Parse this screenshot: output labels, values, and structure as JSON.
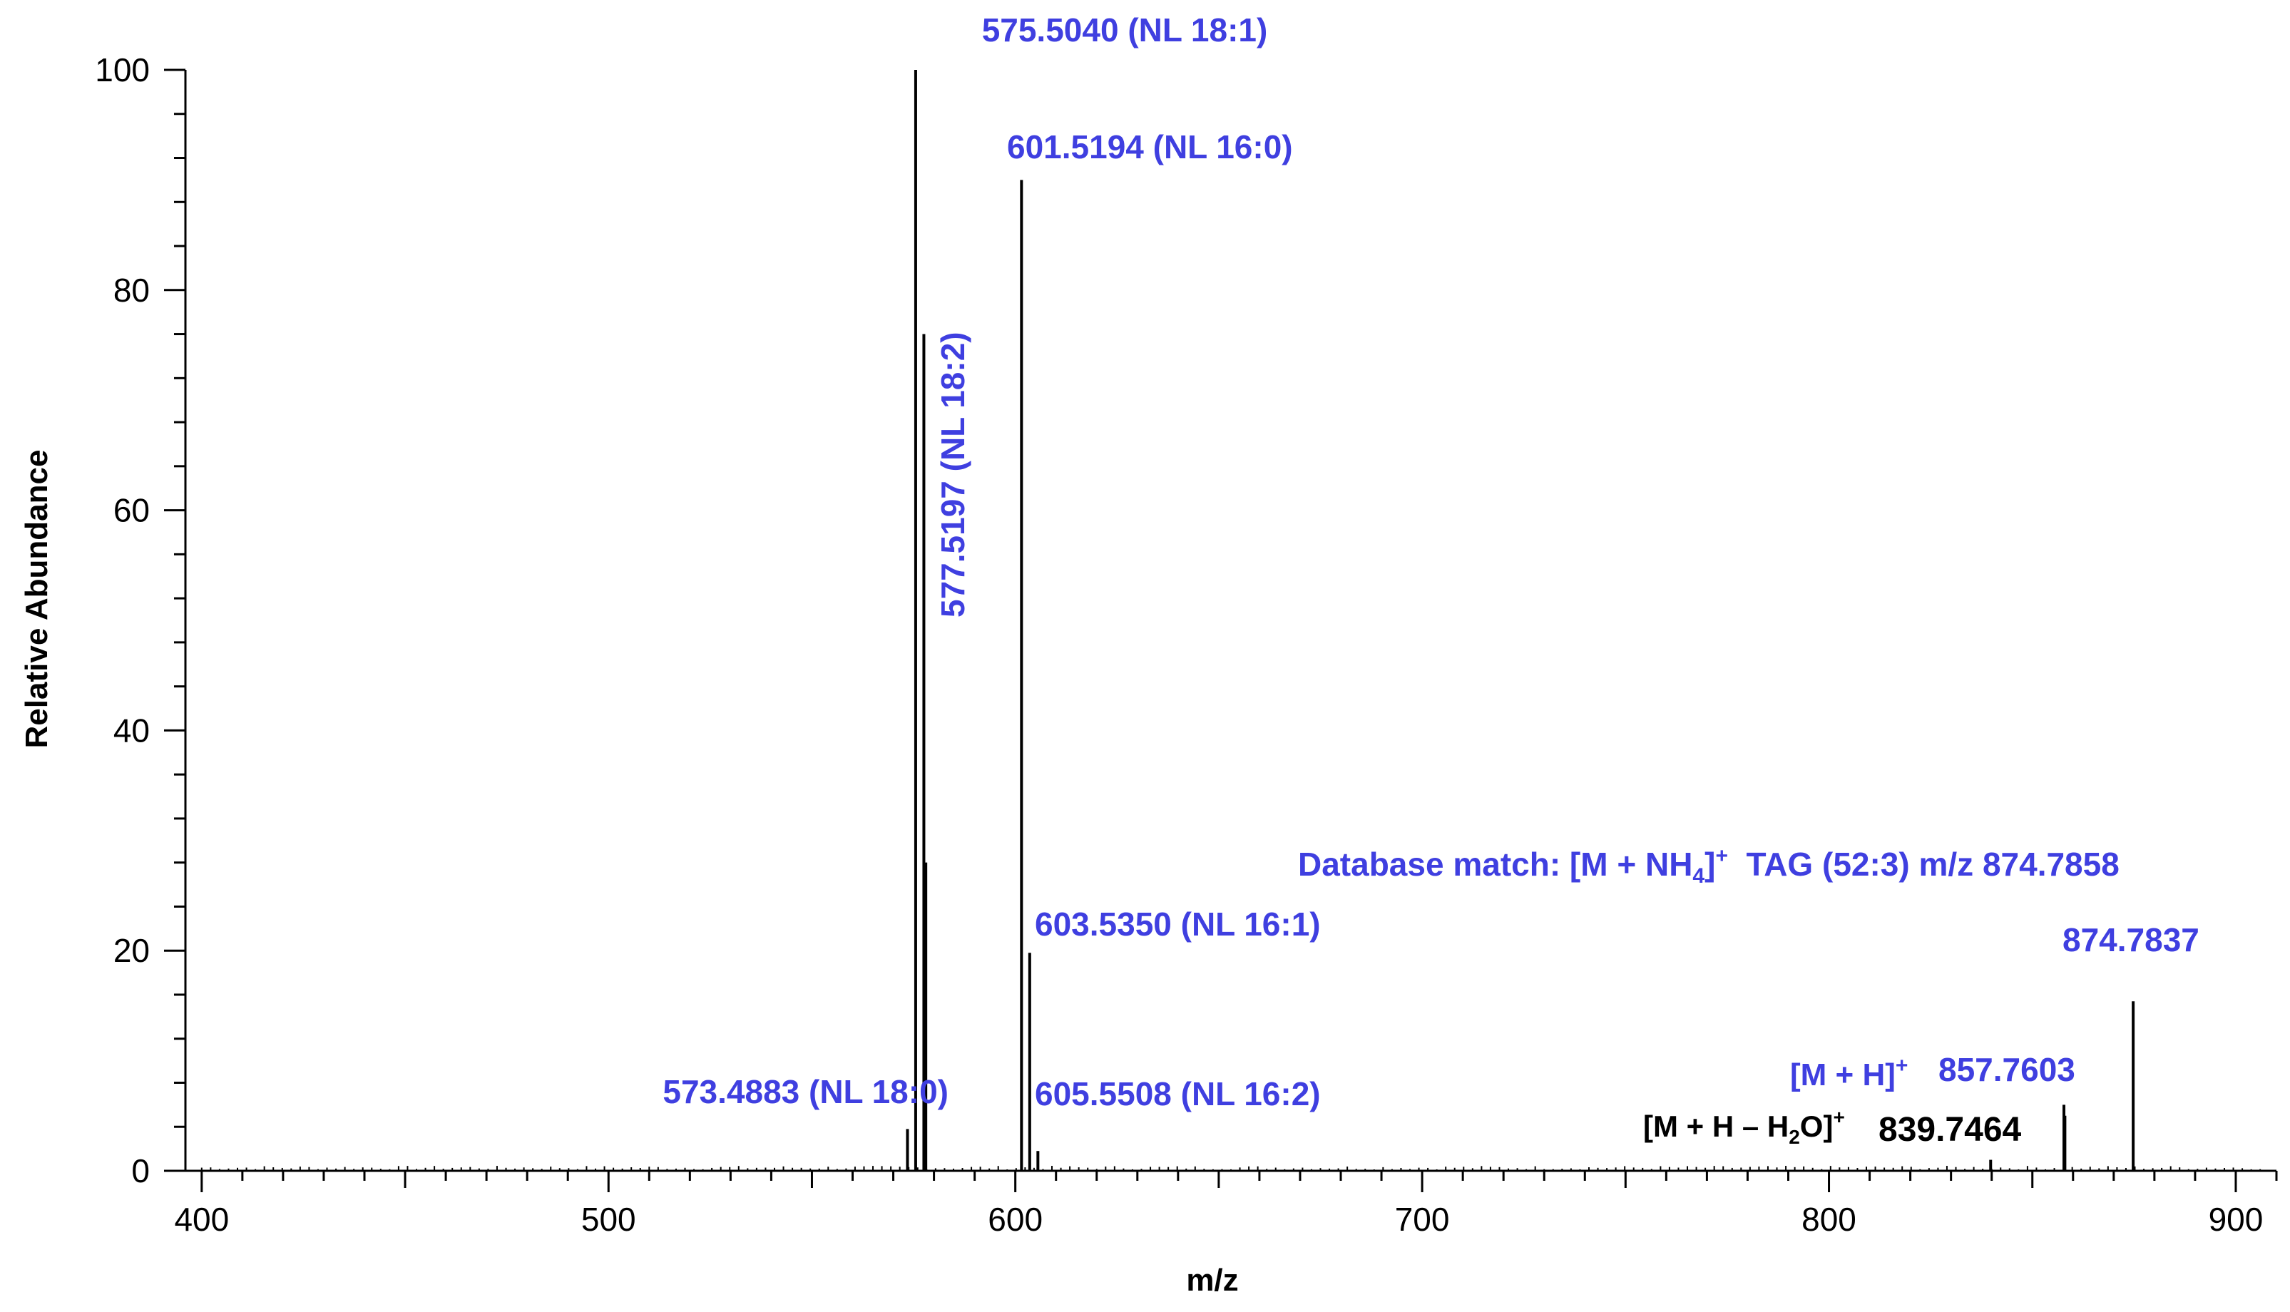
{
  "chart_data": {
    "type": "bar",
    "subtype": "mass-spectrum",
    "title": "",
    "xlabel": "m/z",
    "ylabel": "Relative Abundance",
    "xlim": [
      396,
      910
    ],
    "ylim": [
      0,
      100
    ],
    "x_ticks": [
      400,
      500,
      600,
      700,
      800,
      900
    ],
    "y_ticks": [
      0,
      20,
      40,
      60,
      80,
      100
    ],
    "grid": false,
    "legend": "none",
    "colors": {
      "annotation": "#3f3fe0",
      "black": "#000000"
    },
    "peaks": [
      {
        "mz": 573.4883,
        "abundance": 3.8
      },
      {
        "mz": 575.504,
        "abundance": 100
      },
      {
        "mz": 577.5197,
        "abundance": 76
      },
      {
        "mz": 578.0,
        "abundance": 28
      },
      {
        "mz": 601.5194,
        "abundance": 90
      },
      {
        "mz": 603.535,
        "abundance": 19.8
      },
      {
        "mz": 605.5508,
        "abundance": 1.8
      },
      {
        "mz": 839.7464,
        "abundance": 1.0
      },
      {
        "mz": 857.7603,
        "abundance": 6.0
      },
      {
        "mz": 858.0,
        "abundance": 5.0
      },
      {
        "mz": 874.7837,
        "abundance": 15.4
      }
    ],
    "annotations": {
      "p575": "575.5040 (NL 18:1)",
      "p601": "601.5194 (NL 16:0)",
      "p577": "577.5197 (NL 18:2)",
      "p603": "603.5350 (NL 16:1)",
      "p605": "605.5508 (NL 16:2)",
      "p573": "573.4883 (NL 18:0)",
      "p874": "874.7837",
      "p857": "857.7603",
      "p839": "839.7464",
      "mh": "[M + H]",
      "mh_sup": "+",
      "mhh2o_a": "[M + H – H",
      "mhh2o_sub": "2",
      "mhh2o_b": "O]",
      "mhh2o_sup": "+",
      "db_a": "Database match: [M + NH",
      "db_sub": "4",
      "db_b": "]",
      "db_sup": "+",
      "db_c": "  TAG (52:3) m/z 874.7858"
    }
  }
}
